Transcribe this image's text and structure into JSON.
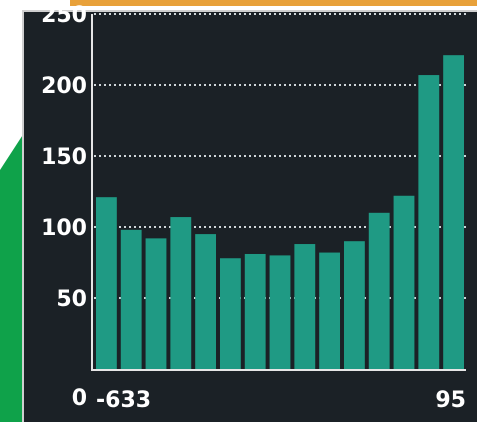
{
  "chart_data": {
    "type": "bar",
    "categories": [
      "-633",
      "",
      "",
      "",
      "",
      "",
      "",
      "",
      "",
      "",
      "",
      "",
      "",
      "",
      "95"
    ],
    "values": [
      121,
      98,
      92,
      107,
      95,
      78,
      81,
      80,
      88,
      82,
      90,
      110,
      122,
      207,
      221
    ],
    "title": "",
    "xlabel": "",
    "ylabel": "",
    "ylim": [
      0,
      250
    ],
    "yticks": [
      0,
      50,
      100,
      150,
      200,
      250
    ],
    "yticklabels": [
      "0",
      "50",
      "100",
      "150",
      "200",
      "250"
    ],
    "xticklabels": [
      "-633",
      "95"
    ],
    "grid": true,
    "legend": "none",
    "colors": {
      "bar": "#1f9a84",
      "background": "#1b2126",
      "grid": "#cfd6d9",
      "text": "#ffffff"
    }
  }
}
